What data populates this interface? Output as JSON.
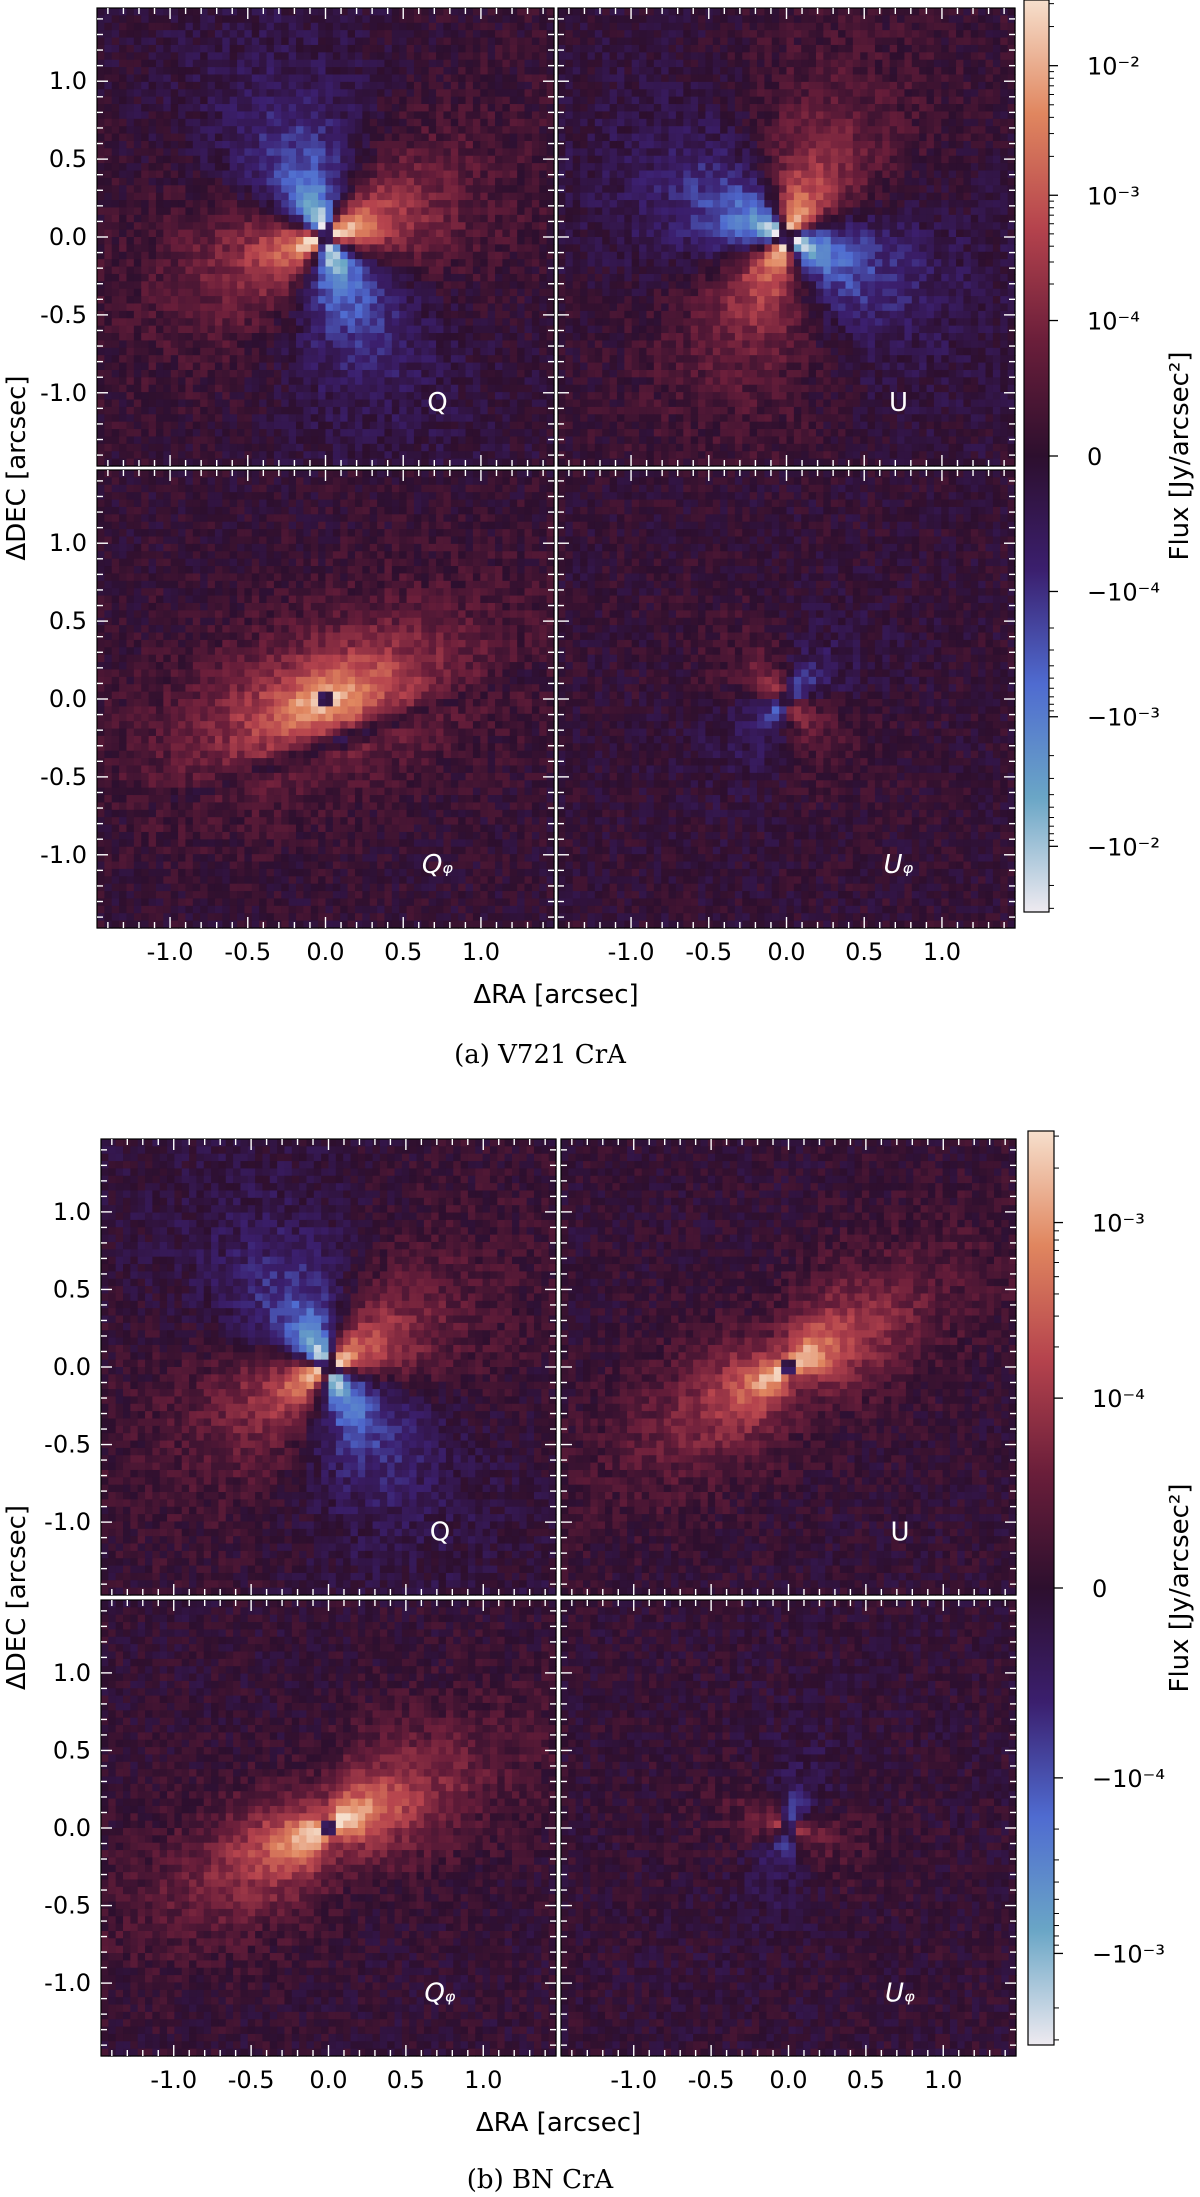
{
  "chart_data": [
    {
      "type": "heatmap",
      "caption": "(a) V721 CrA",
      "xlabel": "ΔRA [arcsec]",
      "ylabel": "ΔDEC [arcsec]",
      "xlim": [
        -1.47,
        1.47
      ],
      "ylim": [
        -1.47,
        1.47
      ],
      "x_ticks": [
        -1.0,
        -0.5,
        0.0,
        0.5,
        1.0
      ],
      "y_ticks": [
        1.0,
        0.5,
        0.0,
        -0.5,
        -1.0
      ],
      "x_tick_labels": [
        "-1.0",
        "-0.5",
        "0.0",
        "0.5",
        "1.0"
      ],
      "y_tick_labels": [
        "1.0",
        "0.5",
        "0.0",
        "-0.5",
        "-1.0"
      ],
      "colorbar": {
        "label": "Flux [Jy/arcsec²]",
        "scale": "symlog",
        "ticks": [
          {
            "value": 0.01,
            "label": "10⁻²"
          },
          {
            "value": 0.001,
            "label": "10⁻³"
          },
          {
            "value": 0.0001,
            "label": "10⁻⁴"
          },
          {
            "value": 0,
            "label": "0"
          },
          {
            "value": -0.0001,
            "label": "−10⁻⁴"
          },
          {
            "value": -0.001,
            "label": "−10⁻³"
          },
          {
            "value": -0.01,
            "label": "−10⁻²"
          }
        ],
        "colors": [
          "#eeeaf0",
          "#6aa6c6",
          "#4f6bd0",
          "#3b1f6e",
          "#2d0f2e",
          "#6a1e3a",
          "#b5434d",
          "#e0865f",
          "#f6dfcc"
        ]
      },
      "panels": [
        {
          "label": "Q",
          "italic": false,
          "pattern": "quad",
          "angle": 20,
          "strength": 1.0,
          "inner": "small"
        },
        {
          "label": "U",
          "italic": false,
          "pattern": "quad",
          "angle": 65,
          "strength": 0.95,
          "inner": "small"
        },
        {
          "label": "Qᵩ",
          "italic": true,
          "pattern": "ring",
          "angle": 20,
          "strength": 1.0,
          "inner": "small"
        },
        {
          "label": "Uᵩ",
          "italic": true,
          "pattern": "quadsmall",
          "angle": 0,
          "strength": 0.7,
          "inner": "small"
        }
      ]
    },
    {
      "type": "heatmap",
      "caption": "(b) BN CrA",
      "xlabel": "ΔRA [arcsec]",
      "ylabel": "ΔDEC [arcsec]",
      "xlim": [
        -1.47,
        1.47
      ],
      "ylim": [
        -1.47,
        1.47
      ],
      "x_ticks": [
        -1.0,
        -0.5,
        0.0,
        0.5,
        1.0
      ],
      "y_ticks": [
        1.0,
        0.5,
        0.0,
        -0.5,
        -1.0
      ],
      "x_tick_labels": [
        "-1.0",
        "-0.5",
        "0.0",
        "0.5",
        "1.0"
      ],
      "y_tick_labels": [
        "1.0",
        "0.5",
        "0.0",
        "-0.5",
        "-1.0"
      ],
      "colorbar": {
        "label": "Flux [Jy/arcsec²]",
        "scale": "symlog",
        "ticks": [
          {
            "value": 0.001,
            "label": "10⁻³"
          },
          {
            "value": 0.0001,
            "label": "10⁻⁴"
          },
          {
            "value": 0,
            "label": "0"
          },
          {
            "value": -0.0001,
            "label": "−10⁻⁴"
          },
          {
            "value": -0.001,
            "label": "−10⁻³"
          }
        ],
        "colors": [
          "#eeeaf0",
          "#6aa6c6",
          "#4f6bd0",
          "#3b1f6e",
          "#2d0f2e",
          "#6a1e3a",
          "#b5434d",
          "#e0865f",
          "#f6dfcc"
        ]
      },
      "panels": [
        {
          "label": "Q",
          "italic": false,
          "pattern": "quad",
          "angle": 30,
          "strength": 0.9,
          "inner": "small"
        },
        {
          "label": "U",
          "italic": false,
          "pattern": "jet",
          "angle": 30,
          "strength": 0.9,
          "inner": "small"
        },
        {
          "label": "Qᵩ",
          "italic": true,
          "pattern": "jet",
          "angle": 25,
          "strength": 1.0,
          "inner": "small"
        },
        {
          "label": "Uᵩ",
          "italic": true,
          "pattern": "quadsmall",
          "angle": 30,
          "strength": 0.6,
          "inner": "small"
        }
      ]
    }
  ]
}
